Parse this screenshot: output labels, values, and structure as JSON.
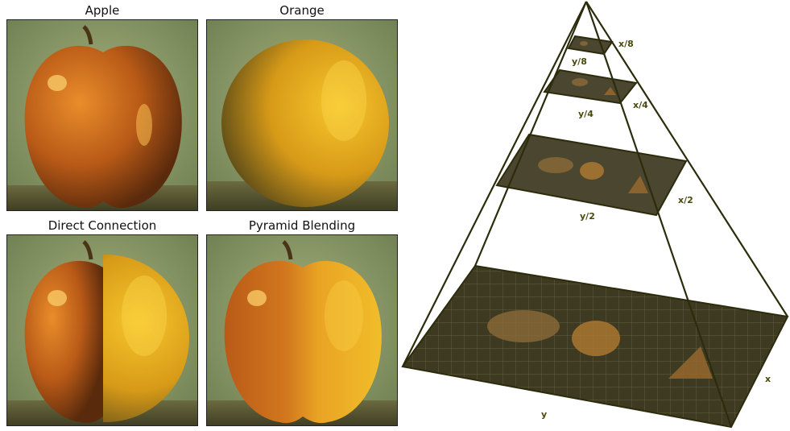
{
  "panels": {
    "apple": {
      "title": "Apple"
    },
    "orange": {
      "title": "Orange"
    },
    "direct": {
      "title": "Direct Connection"
    },
    "pyramid_blend": {
      "title": "Pyramid Blending"
    }
  },
  "pyramid": {
    "levels": [
      {
        "x_label": "x/8",
        "y_label": "y/8"
      },
      {
        "x_label": "x/4",
        "y_label": "y/4"
      },
      {
        "x_label": "x/2",
        "y_label": "y/2"
      },
      {
        "x_label": "x",
        "y_label": "y"
      }
    ]
  },
  "colors": {
    "background_green": "#7f8f5c",
    "apple_red": "#b85a18",
    "orange_yellow": "#e8b020",
    "pyramid_line": "#2c2c0c"
  }
}
